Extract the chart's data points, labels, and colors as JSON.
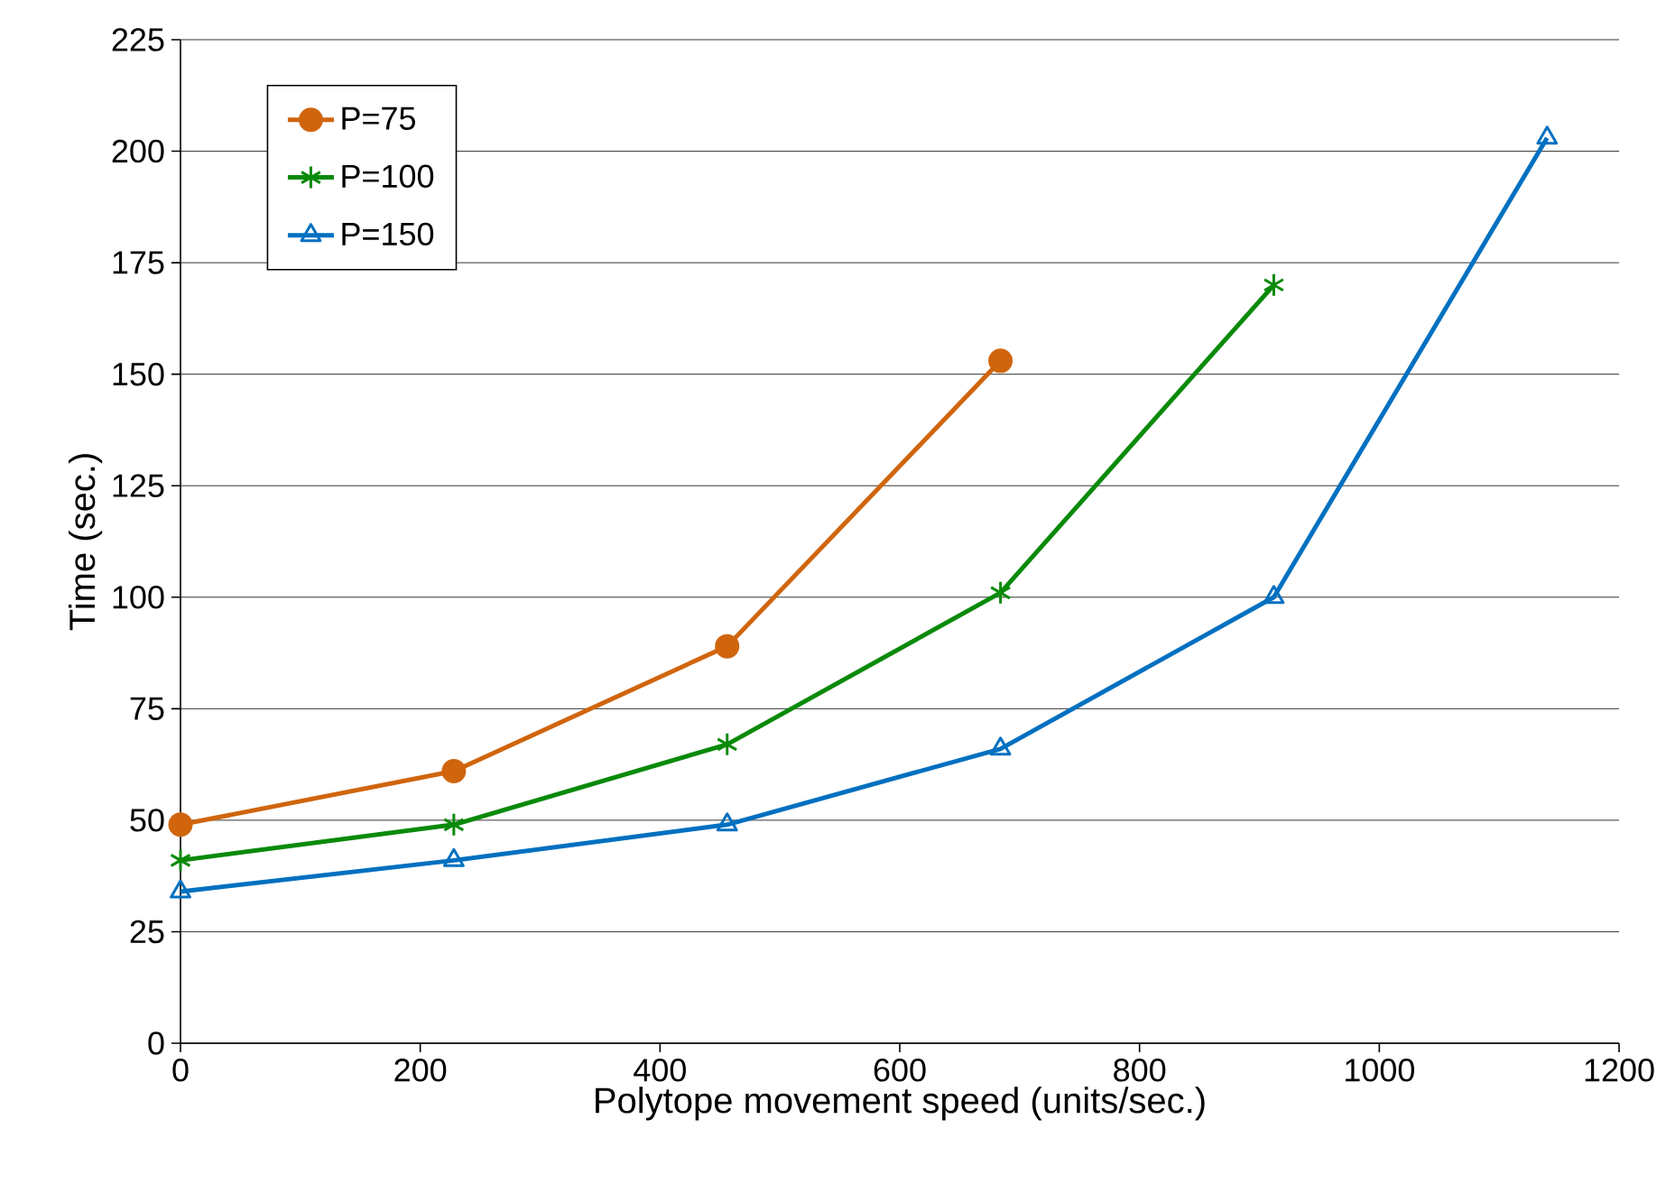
{
  "chart_data": {
    "type": "line",
    "xlabel": "Polytope movement speed (units/sec.)",
    "ylabel": "Time (sec.)",
    "xlim": [
      0,
      1200
    ],
    "xticks": [
      0,
      200,
      400,
      600,
      800,
      1000,
      1200
    ],
    "ylim": [
      0,
      225
    ],
    "yticks": [
      0,
      25,
      50,
      75,
      100,
      125,
      150,
      175,
      200,
      225
    ],
    "grid": "y",
    "legend": "top left",
    "line_style": "solid",
    "series": [
      {
        "name": "P=75",
        "color": "#d0650e",
        "marker": "circle",
        "x": [
          0,
          228,
          456,
          684
        ],
        "values": [
          49,
          61,
          89,
          153
        ]
      },
      {
        "name": "P=100",
        "color": "#0a8a0a",
        "marker": "cross",
        "x": [
          0,
          228,
          456,
          684,
          912
        ],
        "values": [
          41,
          49,
          67,
          101,
          170
        ]
      },
      {
        "name": "P=150",
        "color": "#0070c0",
        "marker": "triangle",
        "x": [
          0,
          228,
          456,
          684,
          912,
          1140
        ],
        "values": [
          34,
          41,
          49,
          66,
          100,
          203
        ]
      }
    ]
  }
}
